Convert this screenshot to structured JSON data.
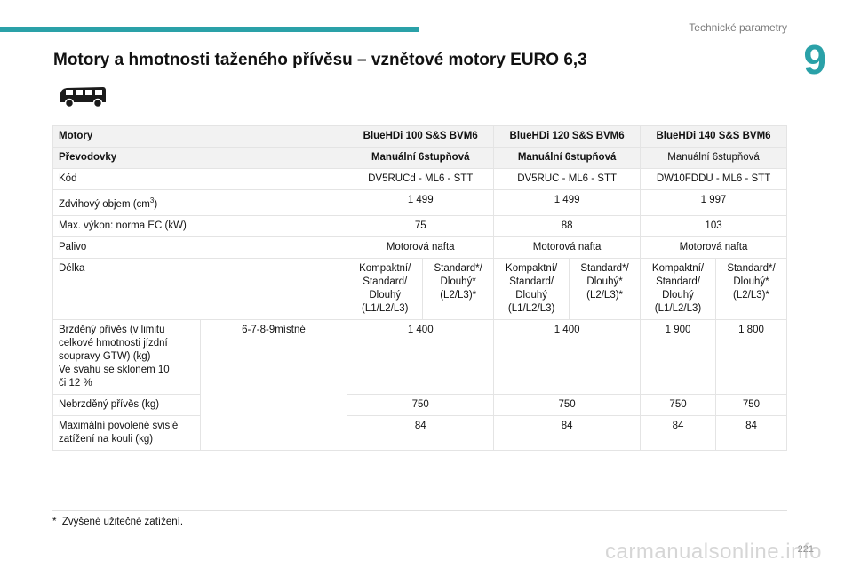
{
  "header": {
    "section": "Technické parametry",
    "chapter": "9",
    "title": "Motory a hmotnosti taženého přívěsu – vznětové motory EURO 6,3",
    "accent_color": "#2aa1a8",
    "vehicle_icon": "van-icon"
  },
  "table": {
    "header_row": {
      "label": "Motory",
      "engines": [
        "BlueHDi 100 S&S BVM6",
        "BlueHDi 120 S&S BVM6",
        "BlueHDi 140 S&S BVM6"
      ]
    },
    "gearbox_row": {
      "label": "Převodovky",
      "values": [
        "Manuální 6stupňová",
        "Manuální 6stupňová",
        "Manuální 6stupňová"
      ]
    },
    "code_row": {
      "label": "Kód",
      "values": [
        "DV5RUCd - ML6 - STT",
        "DV5RUC - ML6 - STT",
        "DW10FDDU - ML6 - STT"
      ]
    },
    "displacement_row": {
      "label": "Zdvihový objem (cm",
      "unit_sup": "3",
      "label_end": ")",
      "values": [
        "1 499",
        "1 499",
        "1 997"
      ]
    },
    "power_row": {
      "label": "Max. výkon: norma EC (kW)",
      "values": [
        "75",
        "88",
        "103"
      ]
    },
    "fuel_row": {
      "label": "Palivo",
      "values": [
        "Motorová nafta",
        "Motorová nafta",
        "Motorová nafta"
      ]
    },
    "length_row": {
      "label": "Délka",
      "variant_a": [
        "Kompaktní/",
        "Standard/",
        "Dlouhý",
        "(L1/L2/L3)"
      ],
      "variant_b": [
        "Standard*/",
        "Dlouhý*",
        "(L2/L3)*"
      ]
    },
    "braked_row": {
      "label": [
        "Brzděný přívěs (v limitu",
        "celkové hmotnosti jízdní",
        "soupravy GTW) (kg)",
        "Ve svahu se sklonem 10",
        "či 12 %"
      ],
      "seats": "6-7-8-9místné",
      "values": [
        "1 400",
        "1 400",
        "1 900",
        "1 800"
      ]
    },
    "unbraked_row": {
      "label": "Nebrzděný přívěs (kg)",
      "values": [
        "750",
        "750",
        "750",
        "750"
      ]
    },
    "tow_row": {
      "label": [
        "Maximální povolené svislé",
        "zatížení na kouli (kg)"
      ],
      "values": [
        "84",
        "84",
        "84",
        "84"
      ]
    }
  },
  "footnote": {
    "marker": "*",
    "text": "Zvýšené užitečné zatížení."
  },
  "page": {
    "number": "221",
    "watermark": "carmanualsonline.info"
  }
}
